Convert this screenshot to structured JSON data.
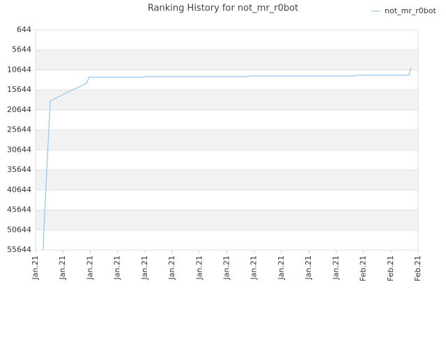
{
  "chart_data": {
    "type": "line",
    "title": "Ranking History for not_mr_r0bot",
    "x": [
      0.28,
      0.33,
      0.38,
      0.43,
      0.48,
      0.54,
      1.25,
      1.86,
      1.96,
      3.93,
      3.98,
      7.8,
      7.85,
      11.7,
      11.75,
      13.67,
      13.7,
      13.75
    ],
    "series": [
      {
        "name": "not_mr_r0bot",
        "color": "#90c4f0",
        "values": [
          55644,
          47116,
          40153,
          33191,
          26229,
          18397,
          15960,
          14046,
          12479,
          12479,
          12305,
          12305,
          12131,
          12131,
          11957,
          11957,
          10739,
          10043
        ]
      }
    ],
    "xlim": [
      0,
      14
    ],
    "xticks": [
      {
        "value": 0,
        "label": "Jan.21"
      },
      {
        "value": 1,
        "label": "Jan.21"
      },
      {
        "value": 2,
        "label": "Jan.21"
      },
      {
        "value": 3,
        "label": "Jan.21"
      },
      {
        "value": 4,
        "label": "Jan.21"
      },
      {
        "value": 5,
        "label": "Jan.21"
      },
      {
        "value": 6,
        "label": "Jan.21"
      },
      {
        "value": 7,
        "label": "Jan.21"
      },
      {
        "value": 8,
        "label": "Jan.21"
      },
      {
        "value": 9,
        "label": "Jan.21"
      },
      {
        "value": 10,
        "label": "Jan.21"
      },
      {
        "value": 11,
        "label": "Jan.21"
      },
      {
        "value": 12,
        "label": "Feb.21"
      },
      {
        "value": 13,
        "label": "Feb.21"
      },
      {
        "value": 14,
        "label": "Feb.21"
      }
    ],
    "ylim": [
      644,
      55644
    ],
    "y_inverted": true,
    "yticks": [
      644,
      5644,
      10644,
      15644,
      20644,
      25644,
      30644,
      35644,
      40644,
      45644,
      50644,
      55644
    ],
    "grid": true,
    "legend": "top-right"
  }
}
